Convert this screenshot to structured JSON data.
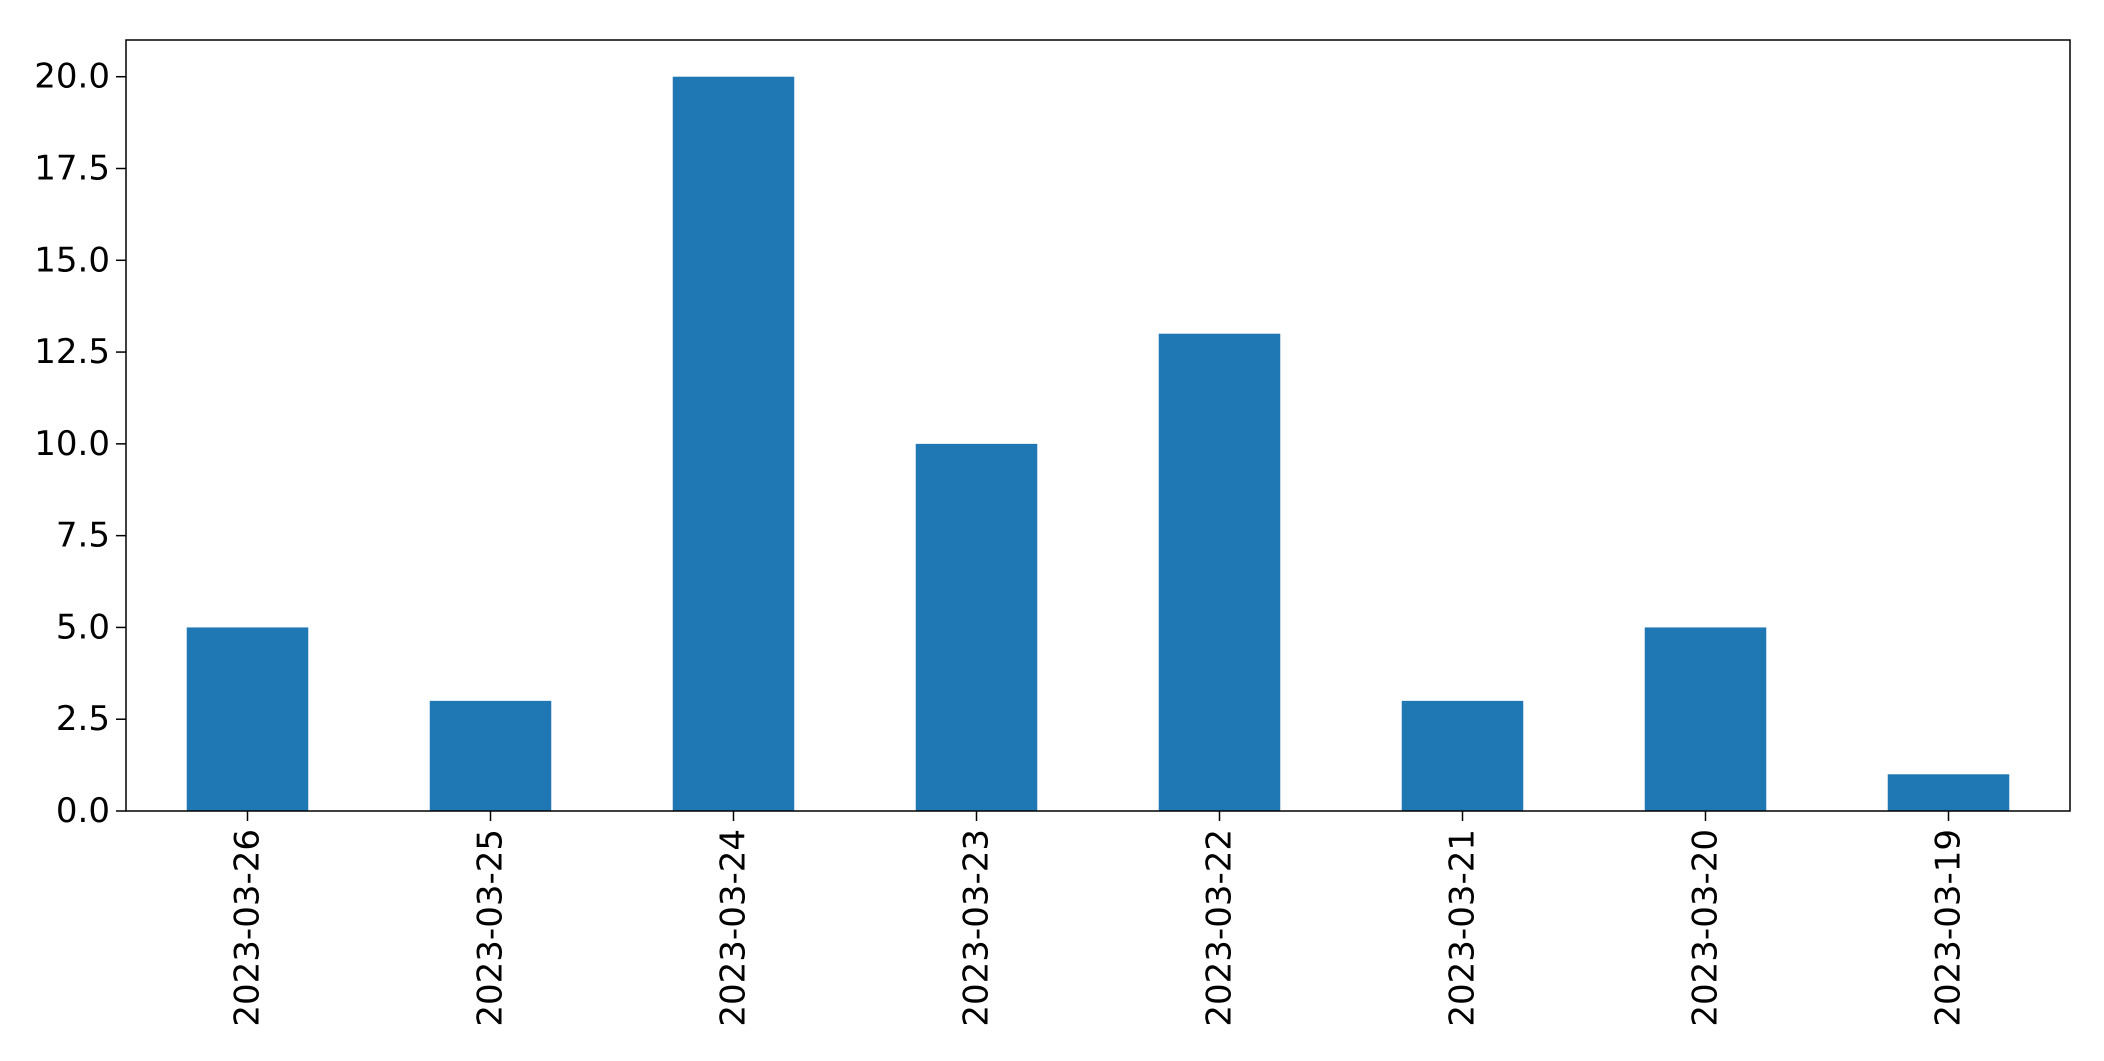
{
  "chart_data": {
    "type": "bar",
    "categories": [
      "2023-03-26",
      "2023-03-25",
      "2023-03-24",
      "2023-03-23",
      "2023-03-22",
      "2023-03-21",
      "2023-03-20",
      "2023-03-19"
    ],
    "values": [
      5,
      3,
      20,
      10,
      13,
      3,
      5,
      1
    ],
    "title": "",
    "xlabel": "",
    "ylabel": "",
    "ylim": [
      0,
      21
    ],
    "yticks": [
      "0.0",
      "2.5",
      "5.0",
      "7.5",
      "10.0",
      "12.5",
      "15.0",
      "17.5",
      "20.0"
    ],
    "grid": false,
    "legend": "none",
    "colors": {
      "bar": "#1f77b4",
      "axis": "#000000",
      "background": "#ffffff"
    }
  }
}
